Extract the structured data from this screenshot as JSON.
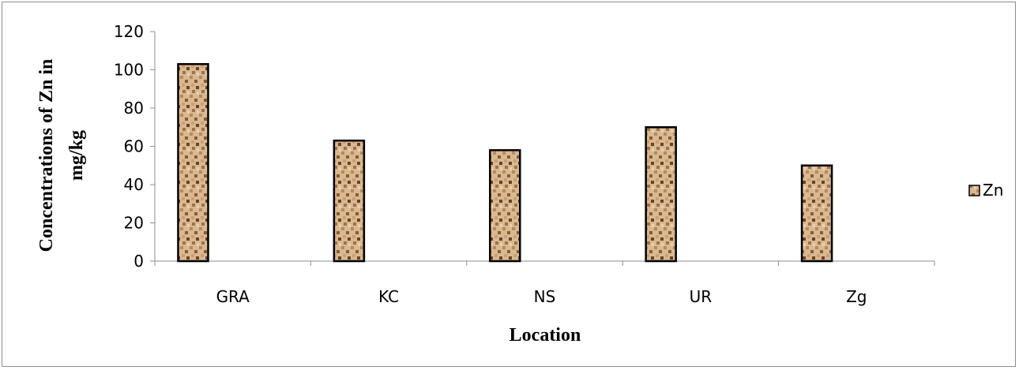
{
  "chart_data": {
    "type": "bar",
    "categories": [
      "GRA",
      "KC",
      "NS",
      "UR",
      "Zg"
    ],
    "series": [
      {
        "name": "Zn",
        "values": [
          103,
          63,
          58,
          70,
          50
        ]
      }
    ],
    "xlabel": "Location",
    "ylabel_lines": [
      "Concentrations of Zn in",
      "mg/kg"
    ],
    "ylim": [
      0,
      120
    ],
    "yticks": [
      "0",
      "20",
      "40",
      "60",
      "80",
      "100",
      "120"
    ],
    "grid": false,
    "legend_position": "right",
    "colors": {
      "bar_fill": "#d2b48c",
      "bar_dark": "#6b4226",
      "bar_outline": "#000000",
      "axis": "#8c8c8c"
    }
  }
}
